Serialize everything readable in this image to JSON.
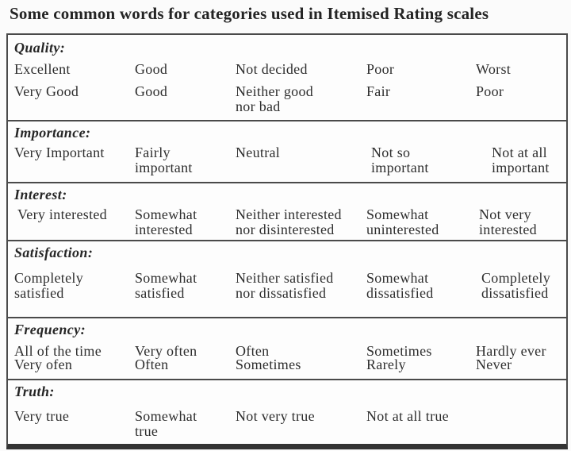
{
  "title": "Some common words for categories used in Itemised Rating scales",
  "colors": {
    "text": "#2e2e2e",
    "border": "#4a4a4a",
    "bottom_bar": "#333333",
    "background": "#fbfbfb"
  },
  "table": {
    "sections": [
      {
        "id": "quality",
        "label": "Quality:",
        "rows": [
          [
            "Excellent",
            "Good",
            "Not decided",
            "Poor",
            "Worst"
          ],
          [
            "Very Good",
            "Good",
            "Neither good\nnor bad",
            "Fair",
            "Poor"
          ]
        ]
      },
      {
        "id": "importance",
        "label": "Importance:",
        "rows": [
          [
            "Very Important",
            "Fairly\nimportant",
            "Neutral",
            "Not so\nimportant",
            "Not at all\nimportant"
          ]
        ]
      },
      {
        "id": "interest",
        "label": "Interest:",
        "rows": [
          [
            "Very interested",
            "Somewhat\ninterested",
            "Neither interested\nnor disinterested",
            "Somewhat\nuninterested",
            "Not very\ninterested"
          ]
        ]
      },
      {
        "id": "satisfaction",
        "label": "Satisfaction:",
        "rows": [
          [
            "Completely\nsatisfied",
            "Somewhat\nsatisfied",
            "Neither satisfied\nnor dissatisfied",
            "Somewhat\ndissatisfied",
            "Completely\ndissatisfied"
          ]
        ]
      },
      {
        "id": "frequency",
        "label": "Frequency:",
        "rows": [
          [
            "All of the time",
            "Very often",
            "Often",
            "Sometimes",
            "Hardly ever"
          ],
          [
            "Very ofen",
            "Often",
            "Sometimes",
            "Rarely",
            "Never"
          ]
        ]
      },
      {
        "id": "truth",
        "label": "Truth:",
        "rows": [
          [
            "Very true",
            "Somewhat\ntrue",
            "Not very true",
            "Not at all true",
            ""
          ]
        ]
      }
    ]
  }
}
